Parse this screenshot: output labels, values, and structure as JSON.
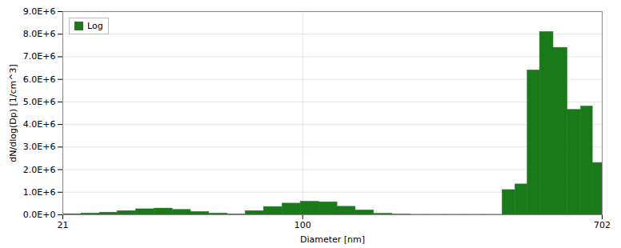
{
  "chart_data": {
    "type": "histogram",
    "xlabel": "Diameter [nm]",
    "ylabel": "dN/dlog(Dp) [1/cm^3]",
    "log": "x",
    "xlim": [
      21,
      702
    ],
    "xticks": [
      21,
      100,
      702
    ],
    "ylim": [
      0,
      9000000
    ],
    "yticks": [
      {
        "value": 0,
        "label": "0.0E+0"
      },
      {
        "value": 1000000,
        "label": "1.0E+6"
      },
      {
        "value": 2000000,
        "label": "2.0E+6"
      },
      {
        "value": 3000000,
        "label": "3.0E+6"
      },
      {
        "value": 4000000,
        "label": "4.0E+6"
      },
      {
        "value": 5000000,
        "label": "5.0E+6"
      },
      {
        "value": 6000000,
        "label": "6.0E+6"
      },
      {
        "value": 7000000,
        "label": "7.0E+6"
      },
      {
        "value": 8000000,
        "label": "8.0E+6"
      },
      {
        "value": 9000000,
        "label": "9.0E+6"
      }
    ],
    "grid": true,
    "legend": "upper left",
    "bins": [
      21.0,
      23.7,
      26.7,
      30.0,
      33.8,
      38.1,
      42.9,
      48.3,
      54.4,
      61.3,
      69.0,
      77.7,
      87.6,
      98.7,
      111.2,
      125.3,
      141.1,
      159.0,
      179.2,
      201.9,
      227.5,
      256.4,
      288.9,
      325.5,
      366.8,
      399.0,
      432.0,
      468.0,
      511.0,
      560.0,
      612.0,
      660.0,
      702.0
    ],
    "series": [
      {
        "name": "Log",
        "color": "#1a7a1a",
        "values": [
          30000,
          60000,
          100000,
          170000,
          250000,
          280000,
          220000,
          130000,
          60000,
          20000,
          170000,
          350000,
          500000,
          580000,
          560000,
          360000,
          200000,
          50000,
          10000,
          5000,
          5000,
          5000,
          5000,
          5000,
          1100000,
          1350000,
          6400000,
          8100000,
          7400000,
          4650000,
          4800000,
          2300000
        ]
      }
    ]
  }
}
